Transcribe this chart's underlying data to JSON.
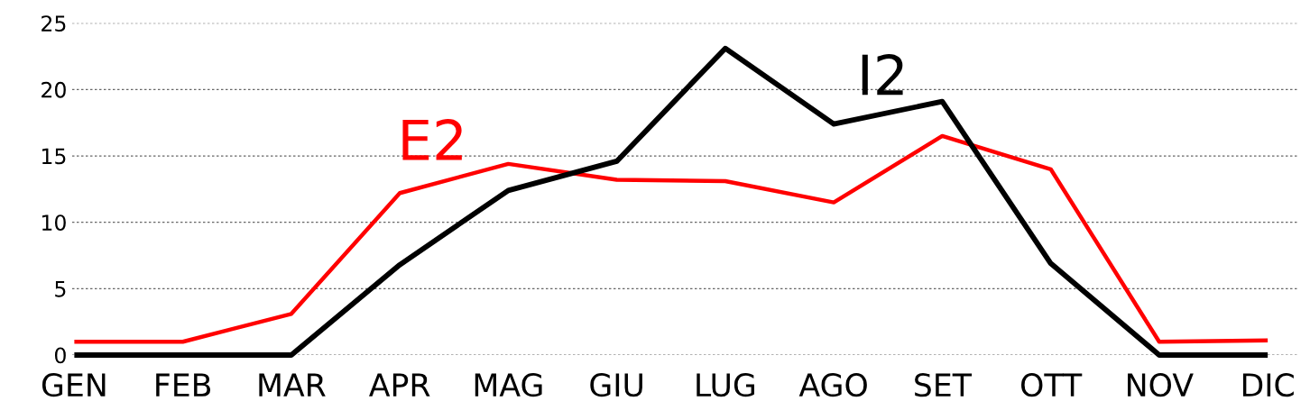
{
  "chart_data": {
    "type": "line",
    "categories": [
      "GEN",
      "FEB",
      "MAR",
      "APR",
      "MAG",
      "GIU",
      "LUG",
      "AGO",
      "SET",
      "OTT",
      "NOV",
      "DIC"
    ],
    "series": [
      {
        "name": "E2",
        "color": "#ff0000",
        "values": [
          1.0,
          1.0,
          3.1,
          12.2,
          14.4,
          13.2,
          13.1,
          11.5,
          16.5,
          14.0,
          1.0,
          1.1
        ]
      },
      {
        "name": "I2",
        "color": "#000000",
        "values": [
          0,
          0,
          0,
          6.8,
          12.4,
          14.6,
          23.1,
          17.4,
          19.1,
          6.9,
          0,
          0
        ]
      }
    ],
    "ylim": [
      0,
      25
    ],
    "yticks": [
      0,
      5,
      10,
      15,
      20,
      25
    ],
    "grid": "y",
    "legend": false,
    "marker": "none",
    "line_style": "solid"
  }
}
